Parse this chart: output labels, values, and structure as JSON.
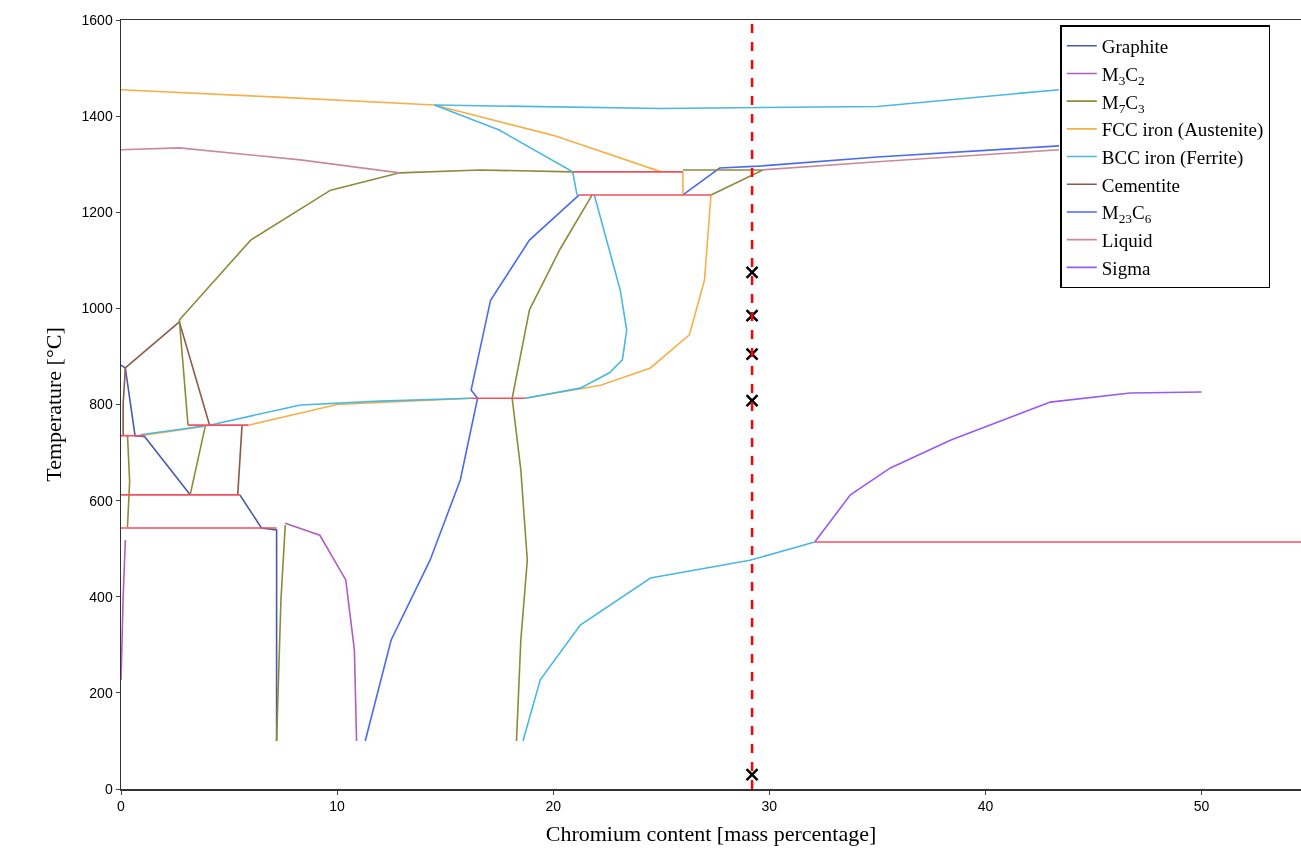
{
  "chart_data": {
    "type": "line",
    "xlabel": "Chromium content [mass percentage]",
    "ylabel": "Temperature [°C]",
    "xlim": [
      0,
      54.6
    ],
    "xticks": [
      0,
      10,
      20,
      30,
      40,
      50
    ],
    "ylim": [
      0,
      1600
    ],
    "yticks": [
      0,
      200,
      400,
      600,
      800,
      1000,
      1200,
      1400,
      1600
    ],
    "grid": false,
    "legend": "top right",
    "marker": "none",
    "line_style": "solid",
    "series": [
      {
        "name": "Graphite",
        "color": "#4a5aa8",
        "x": [
          0,
          0.2,
          0.65,
          1.1,
          3.2
        ],
        "values": [
          882,
          876,
          735,
          733,
          612
        ]
      },
      {
        "name": "M$_{3}$C$_{2}$",
        "color": "#b05cc0",
        "x": [
          7.6,
          9.2,
          10.4,
          10.8,
          10.9
        ],
        "values": [
          553,
          528,
          435,
          289,
          100
        ]
      },
      {
        "name": "M$_{7}$C$_{3}$",
        "color": "#8f8a3a",
        "x": [
          2.7,
          6,
          9.7,
          12.9,
          16.6,
          20.9
        ],
        "values": [
          976,
          1142,
          1246,
          1282,
          1288,
          1284
        ]
      },
      {
        "name": "FCC iron (Austenite)",
        "color": "#f5b04a",
        "x": [
          0,
          7,
          14.5,
          20,
          25
        ],
        "values": [
          1455,
          1440,
          1423,
          1360,
          1284
        ]
      },
      {
        "name": "BCC iron (Ferrite)",
        "color": "#4ab8e0",
        "x": [
          14.5,
          25,
          35,
          43.4
        ],
        "values": [
          1423,
          1416,
          1420,
          1455
        ]
      },
      {
        "name": "Cementite",
        "color": "#8b5a4a",
        "x": [
          0.2,
          2.7,
          4.1
        ],
        "values": [
          876,
          972,
          757
        ]
      },
      {
        "name": "M$_{23}$C$_{6}$",
        "color": "#4a6af0",
        "x": [
          26,
          27.7,
          29.5,
          35,
          43.4
        ],
        "values": [
          1236,
          1292,
          1296,
          1315,
          1338
        ]
      },
      {
        "name": "Liquid",
        "color": "#c88a9a",
        "x": [
          0,
          2.7,
          8.3,
          12.9
        ],
        "values": [
          1330,
          1334,
          1309,
          1282
        ]
      },
      {
        "name": "Sigma",
        "color": "#9a5af0",
        "x": [
          32.1,
          33.75,
          35.6,
          38.4,
          43,
          46.7,
          50
        ],
        "values": [
          514,
          612,
          668,
          726,
          805,
          824,
          826
        ]
      },
      {
        "color": "#4a5aa8",
        "x": [
          5.5,
          6.5,
          7.2,
          7.2
        ],
        "values": [
          612,
          543,
          539,
          100
        ]
      },
      {
        "color": "#b05cc0",
        "x": [
          0,
          0.1,
          0.2
        ],
        "values": [
          227,
          400,
          518
        ]
      },
      {
        "color": "#8f8a3a",
        "x": [
          26,
          29.7
        ],
        "values": [
          1288,
          1288
        ]
      },
      {
        "color": "#8f8a3a",
        "x": [
          27.3,
          29.7
        ],
        "values": [
          1236,
          1288
        ]
      },
      {
        "color": "#8f8a3a",
        "x": [
          21.8,
          20.3,
          18.9,
          18.1,
          18.5,
          18.8,
          18.5,
          18.3
        ],
        "values": [
          1236,
          1122,
          997,
          813,
          664,
          476,
          310,
          100
        ]
      },
      {
        "color": "#8f8a3a",
        "x": [
          2.7,
          3.1
        ],
        "values": [
          976,
          757
        ]
      },
      {
        "color": "#8f8a3a",
        "x": [
          3.2,
          3.9
        ],
        "values": [
          612,
          755
        ]
      },
      {
        "color": "#8f8a3a",
        "x": [
          7.6,
          7.4,
          7.2
        ],
        "values": [
          549,
          393,
          100
        ]
      },
      {
        "color": "#8f8a3a",
        "x": [
          0.3,
          0.4,
          0.3
        ],
        "values": [
          737,
          640,
          545
        ]
      },
      {
        "color": "#f5b04a",
        "x": [
          18.7,
          22.2,
          24.5,
          26.3,
          27,
          27.3
        ],
        "values": [
          813,
          840,
          876,
          945,
          1059,
          1236
        ]
      },
      {
        "color": "#f5b04a",
        "x": [
          26,
          26
        ],
        "values": [
          1236,
          1284
        ]
      },
      {
        "color": "#f5b04a",
        "x": [
          5.9,
          10,
          16.2
        ],
        "values": [
          757,
          800,
          813
        ]
      },
      {
        "color": "#f5b04a",
        "x": [
          0.9,
          3.9
        ],
        "values": [
          735,
          755
        ]
      },
      {
        "color": "#4ab8e0",
        "x": [
          14.5,
          17.5,
          20.9,
          21.1
        ],
        "values": [
          1423,
          1371,
          1284,
          1236
        ]
      },
      {
        "color": "#4ab8e0",
        "x": [
          21.9,
          23.1,
          23.4,
          23.2,
          22.6,
          21.25,
          18.7
        ],
        "values": [
          1236,
          1038,
          955,
          893,
          866,
          834,
          813
        ]
      },
      {
        "color": "#4ab8e0",
        "x": [
          0.9,
          4.1,
          8.3,
          12,
          16.2
        ],
        "values": [
          737,
          757,
          799,
          807,
          813
        ]
      },
      {
        "color": "#4ab8e0",
        "x": [
          18.6,
          19.4,
          21.25,
          24.5,
          29.1,
          32.1
        ],
        "values": [
          100,
          227,
          341,
          439,
          476,
          514
        ]
      },
      {
        "color": "#c88a9a",
        "x": [
          29.6,
          35,
          43.4
        ],
        "values": [
          1288,
          1305,
          1330
        ]
      },
      {
        "color": "#4a6af0",
        "x": [
          21.2,
          18.9,
          17.1,
          16.2,
          16.5,
          15.7,
          14.3,
          12.5,
          11.3
        ],
        "values": [
          1236,
          1142,
          1017,
          830,
          813,
          643,
          476,
          310,
          100
        ]
      },
      {
        "color": "#8b5a4a",
        "x": [
          0.2,
          0.1,
          0.1
        ],
        "values": [
          876,
          800,
          735
        ]
      },
      {
        "color": "#8b5a4a",
        "x": [
          5.6,
          5.4
        ],
        "values": [
          757,
          612
        ]
      },
      {
        "color": "#f05060",
        "x": [
          20.9,
          26
        ],
        "values": [
          1284,
          1284
        ]
      },
      {
        "color": "#f05060",
        "x": [
          21.2,
          27.3
        ],
        "values": [
          1236,
          1236
        ]
      },
      {
        "color": "#f05060",
        "x": [
          16.2,
          18.7
        ],
        "values": [
          813,
          813
        ]
      },
      {
        "color": "#f05060",
        "x": [
          3.1,
          5.9
        ],
        "values": [
          757,
          757
        ]
      },
      {
        "color": "#f05060",
        "x": [
          0,
          1.1
        ],
        "values": [
          735,
          735
        ]
      },
      {
        "color": "#f05060",
        "x": [
          0,
          5.5
        ],
        "values": [
          612,
          612
        ]
      },
      {
        "color": "#f05060",
        "x": [
          0,
          7.2
        ],
        "values": [
          543,
          543
        ]
      },
      {
        "color": "#f05060",
        "x": [
          32.1,
          54.6
        ],
        "values": [
          514,
          514
        ]
      },
      {
        "type": "scatter",
        "marker": "cross",
        "color": "#000000",
        "x": [
          29.2,
          29.2,
          29.2,
          29.2,
          29.2
        ],
        "values": [
          1075,
          985,
          905,
          808,
          30
        ]
      }
    ],
    "ref_lines": [
      {
        "axis": "x",
        "value": 29.2,
        "color": "#ff0000",
        "line_style": "dashed"
      }
    ]
  }
}
